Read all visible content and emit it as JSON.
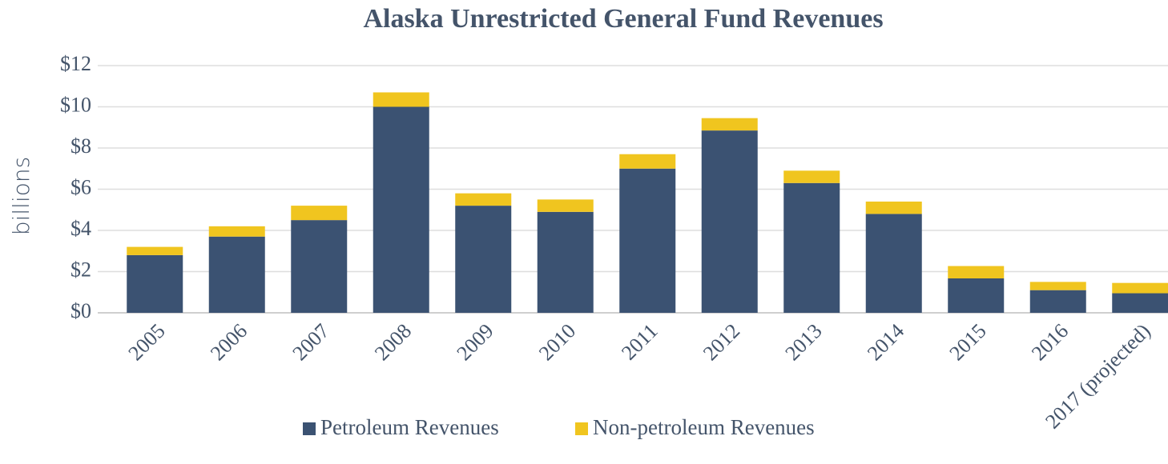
{
  "chart_data": {
    "type": "stacked_bar",
    "title": "Alaska Unrestricted General Fund Revenues",
    "y_label": "billions",
    "categories": [
      "2005",
      "2006",
      "2007",
      "2008",
      "2009",
      "2010",
      "2011",
      "2012",
      "2013",
      "2014",
      "2015",
      "2016",
      "2017 (projected)"
    ],
    "series": [
      {
        "name": "Petroleum Revenues",
        "color": "#3b5272",
        "values": [
          2.8,
          3.7,
          4.5,
          10.0,
          5.2,
          4.9,
          7.0,
          8.85,
          6.3,
          4.8,
          1.67,
          1.1,
          0.95
        ]
      },
      {
        "name": "Non-petroleum Revenues",
        "color": "#f0c51f",
        "values": [
          0.4,
          0.5,
          0.7,
          0.7,
          0.6,
          0.6,
          0.7,
          0.6,
          0.6,
          0.6,
          0.6,
          0.4,
          0.5
        ]
      }
    ],
    "ylim": [
      0,
      12
    ],
    "yticks": [
      {
        "value": 0,
        "label": "$0"
      },
      {
        "value": 2,
        "label": "$2"
      },
      {
        "value": 4,
        "label": "$4"
      },
      {
        "value": 6,
        "label": "$6"
      },
      {
        "value": 8,
        "label": "$8"
      },
      {
        "value": 10,
        "label": "$10"
      },
      {
        "value": 12,
        "label": "$12"
      }
    ],
    "grid": true,
    "legend": "bottom"
  }
}
